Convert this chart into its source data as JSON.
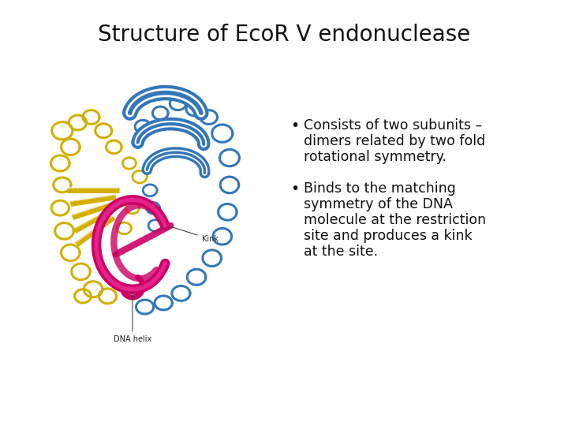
{
  "title": "Structure of EcoR V endonuclease",
  "title_fontsize": 20,
  "title_color": "#111111",
  "background_color": "#ffffff",
  "text_color": "#111111",
  "text_fontsize": 12.5,
  "bullet1_text": "Consists of two subunits –\ndimers related by two fold\nrotational symmetry.",
  "bullet2_text": "Binds to the matching\nsymmetry of the DNA\nmolecule at the restriction\nsite and produces a kink\nat the site.",
  "kink_label": "Kink",
  "dna_label": "DNA helix",
  "label_fontsize": 7,
  "yellow": "#d4af00",
  "blue": "#3377bb",
  "magenta": "#cc0066",
  "magenta_light": "#ff44aa",
  "outline": "#333333"
}
